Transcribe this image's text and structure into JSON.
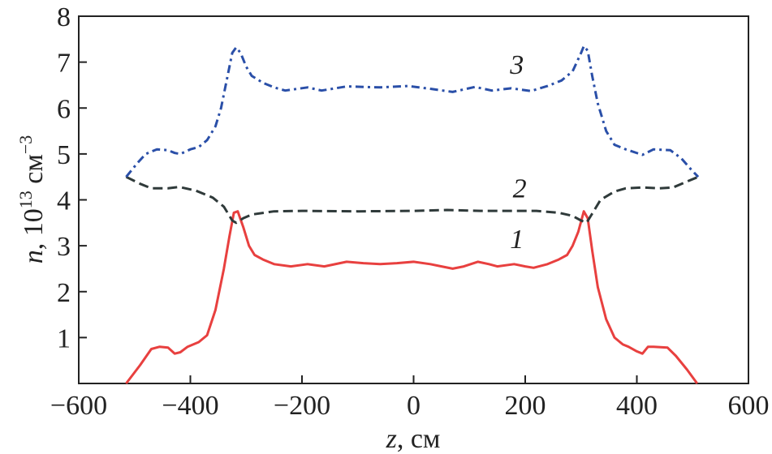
{
  "chart_data": {
    "type": "line",
    "xlabel_var": "z",
    "xlabel_unit": ", см",
    "ylabel_var": "n",
    "ylabel_unit": ", 10",
    "ylabel_exp": "13",
    "ylabel_unit2": " см",
    "ylabel_exp2": "−3",
    "xlim": [
      -600,
      600
    ],
    "ylim": [
      0,
      8
    ],
    "xticks": [
      -600,
      -400,
      -200,
      0,
      200,
      400,
      600
    ],
    "xtick_labels": [
      "−600",
      "−400",
      "−200",
      "0",
      "200",
      "400",
      "600"
    ],
    "yticks": [
      1,
      2,
      3,
      4,
      5,
      6,
      7,
      8
    ],
    "ytick_labels": [
      "1",
      "2",
      "3",
      "4",
      "5",
      "6",
      "7",
      "8"
    ],
    "grid": false,
    "series": [
      {
        "name": "1",
        "color": "#e8403f",
        "style": "solid",
        "x": [
          -515,
          -490,
          -470,
          -455,
          -440,
          -428,
          -418,
          -405,
          -385,
          -370,
          -355,
          -340,
          -330,
          -322,
          -315,
          -305,
          -295,
          -285,
          -270,
          -250,
          -220,
          -190,
          -160,
          -120,
          -90,
          -60,
          -30,
          0,
          30,
          50,
          70,
          90,
          115,
          135,
          150,
          180,
          200,
          215,
          240,
          260,
          275,
          285,
          295,
          305,
          312,
          320,
          330,
          345,
          360,
          375,
          385,
          400,
          410,
          420,
          430,
          455,
          470,
          490,
          508
        ],
        "y": [
          0,
          0.4,
          0.75,
          0.8,
          0.78,
          0.65,
          0.68,
          0.8,
          0.9,
          1.05,
          1.6,
          2.5,
          3.2,
          3.72,
          3.75,
          3.4,
          3.0,
          2.8,
          2.7,
          2.6,
          2.55,
          2.6,
          2.55,
          2.65,
          2.62,
          2.6,
          2.62,
          2.65,
          2.6,
          2.55,
          2.5,
          2.55,
          2.65,
          2.6,
          2.55,
          2.6,
          2.55,
          2.52,
          2.6,
          2.7,
          2.8,
          3.0,
          3.3,
          3.75,
          3.6,
          2.9,
          2.1,
          1.4,
          1.0,
          0.85,
          0.8,
          0.7,
          0.65,
          0.8,
          0.8,
          0.78,
          0.6,
          0.3,
          0
        ]
      },
      {
        "name": "2",
        "color": "#2f3a3a",
        "style": "dashed",
        "x": [
          -515,
          -490,
          -470,
          -440,
          -420,
          -390,
          -360,
          -340,
          -325,
          -318,
          -305,
          -290,
          -250,
          -200,
          -100,
          0,
          60,
          120,
          220,
          260,
          285,
          300,
          310,
          320,
          335,
          360,
          380,
          410,
          440,
          465,
          490,
          510
        ],
        "y": [
          4.5,
          4.35,
          4.25,
          4.25,
          4.28,
          4.2,
          4.05,
          3.85,
          3.55,
          3.5,
          3.6,
          3.68,
          3.75,
          3.76,
          3.75,
          3.76,
          3.78,
          3.76,
          3.76,
          3.72,
          3.65,
          3.55,
          3.5,
          3.7,
          4.0,
          4.18,
          4.25,
          4.27,
          4.25,
          4.27,
          4.4,
          4.5
        ]
      },
      {
        "name": "3",
        "color": "#2a4fa8",
        "style": "dashdot",
        "x": [
          -515,
          -495,
          -480,
          -460,
          -440,
          -428,
          -418,
          -400,
          -385,
          -370,
          -355,
          -345,
          -335,
          -325,
          -318,
          -310,
          -300,
          -290,
          -270,
          -250,
          -230,
          -190,
          -165,
          -120,
          -60,
          -10,
          30,
          70,
          110,
          140,
          175,
          210,
          240,
          265,
          285,
          300,
          305,
          312,
          320,
          330,
          345,
          360,
          380,
          410,
          430,
          460,
          480,
          498,
          510
        ],
        "y": [
          4.5,
          4.8,
          5.0,
          5.1,
          5.08,
          5.02,
          5.0,
          5.1,
          5.15,
          5.3,
          5.6,
          6.0,
          6.6,
          7.2,
          7.32,
          7.2,
          6.9,
          6.7,
          6.55,
          6.45,
          6.38,
          6.45,
          6.38,
          6.47,
          6.45,
          6.48,
          6.42,
          6.35,
          6.46,
          6.38,
          6.43,
          6.37,
          6.48,
          6.6,
          6.8,
          7.2,
          7.35,
          7.25,
          6.7,
          6.1,
          5.5,
          5.2,
          5.1,
          4.98,
          5.1,
          5.08,
          4.9,
          4.65,
          4.5
        ]
      }
    ],
    "curve_labels": [
      {
        "text": "1",
        "x": 185,
        "y": 2.95
      },
      {
        "text": "2",
        "x": 190,
        "y": 4.05
      },
      {
        "text": "3",
        "x": 185,
        "y": 6.75
      }
    ]
  }
}
